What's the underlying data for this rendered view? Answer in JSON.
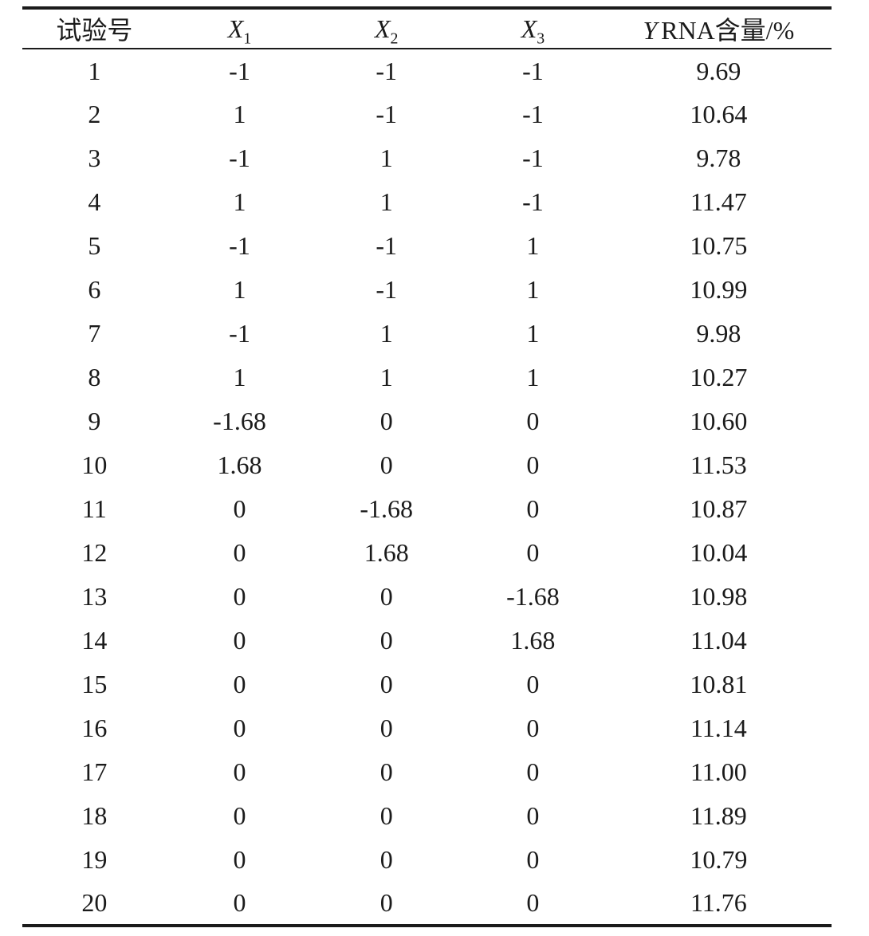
{
  "table": {
    "headers": {
      "no": "试验号",
      "x1_base": "X",
      "x1_sub": "1",
      "x2_base": "X",
      "x2_sub": "2",
      "x3_base": "X",
      "x3_sub": "3",
      "y_var": "Y",
      "y_rest": "RNA含量/%"
    },
    "rows": [
      [
        "1",
        "-1",
        "-1",
        "-1",
        "9.69"
      ],
      [
        "2",
        "1",
        "-1",
        "-1",
        "10.64"
      ],
      [
        "3",
        "-1",
        "1",
        "-1",
        "9.78"
      ],
      [
        "4",
        "1",
        "1",
        "-1",
        "11.47"
      ],
      [
        "5",
        "-1",
        "-1",
        "1",
        "10.75"
      ],
      [
        "6",
        "1",
        "-1",
        "1",
        "10.99"
      ],
      [
        "7",
        "-1",
        "1",
        "1",
        "9.98"
      ],
      [
        "8",
        "1",
        "1",
        "1",
        "10.27"
      ],
      [
        "9",
        "-1.68",
        "0",
        "0",
        "10.60"
      ],
      [
        "10",
        "1.68",
        "0",
        "0",
        "11.53"
      ],
      [
        "11",
        "0",
        "-1.68",
        "0",
        "10.87"
      ],
      [
        "12",
        "0",
        "1.68",
        "0",
        "10.04"
      ],
      [
        "13",
        "0",
        "0",
        "-1.68",
        "10.98"
      ],
      [
        "14",
        "0",
        "0",
        "1.68",
        "11.04"
      ],
      [
        "15",
        "0",
        "0",
        "0",
        "10.81"
      ],
      [
        "16",
        "0",
        "0",
        "0",
        "11.14"
      ],
      [
        "17",
        "0",
        "0",
        "0",
        "11.00"
      ],
      [
        "18",
        "0",
        "0",
        "0",
        "11.89"
      ],
      [
        "19",
        "0",
        "0",
        "0",
        "10.79"
      ],
      [
        "20",
        "0",
        "0",
        "0",
        "11.76"
      ]
    ],
    "colors": {
      "text": "#1b1b1b",
      "rule": "#1b1b1b",
      "background": "#ffffff"
    }
  }
}
